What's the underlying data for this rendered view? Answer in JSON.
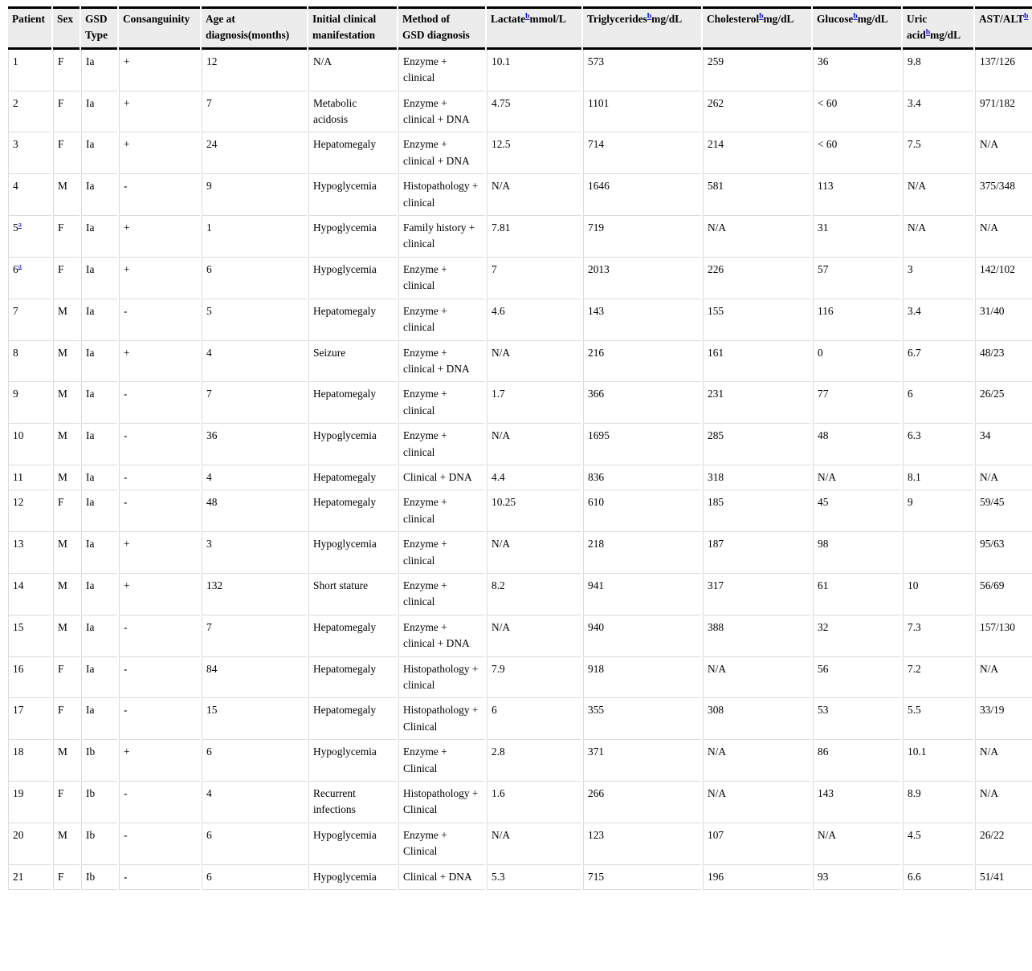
{
  "colors": {
    "header_background": "#ececec",
    "heavy_rule": "#000000",
    "grid_line": "#dcdcdc",
    "footnote_link": "#0000ee",
    "text": "#000000"
  },
  "table": {
    "columns": [
      {
        "lines": [
          [
            {
              "t": "Patient"
            }
          ]
        ]
      },
      {
        "lines": [
          [
            {
              "t": "Sex"
            }
          ]
        ]
      },
      {
        "lines": [
          [
            {
              "t": "GSD"
            }
          ],
          [
            {
              "t": "Type"
            }
          ]
        ]
      },
      {
        "lines": [
          [
            {
              "t": "Consanguinity"
            }
          ]
        ]
      },
      {
        "lines": [
          [
            {
              "t": "Age at"
            }
          ],
          [
            {
              "t": "diagnosis(months)"
            }
          ]
        ]
      },
      {
        "lines": [
          [
            {
              "t": "Initial clinical"
            }
          ],
          [
            {
              "t": "manifestation"
            }
          ]
        ]
      },
      {
        "lines": [
          [
            {
              "t": "Method of"
            }
          ],
          [
            {
              "t": "GSD diagnosis"
            }
          ]
        ]
      },
      {
        "lines": [
          [
            {
              "t": "Lactate"
            },
            {
              "sup": "b"
            },
            {
              "t": "mmol/L"
            }
          ]
        ]
      },
      {
        "lines": [
          [
            {
              "t": "Triglycerides"
            },
            {
              "sup": "b"
            },
            {
              "t": "mg/dL"
            }
          ]
        ]
      },
      {
        "lines": [
          [
            {
              "t": "Cholesterol"
            },
            {
              "sup": "b"
            },
            {
              "t": "mg/dL"
            }
          ]
        ]
      },
      {
        "lines": [
          [
            {
              "t": "Glucose"
            },
            {
              "sup": "b"
            },
            {
              "t": "mg/dL"
            }
          ]
        ]
      },
      {
        "lines": [
          [
            {
              "t": "Uric"
            }
          ],
          [
            {
              "t": "acid"
            },
            {
              "sup": "b"
            },
            {
              "t": "mg/dL"
            }
          ]
        ]
      },
      {
        "lines": [
          [
            {
              "t": "AST/ALT"
            },
            {
              "sup": "b"
            }
          ]
        ]
      }
    ],
    "rows": [
      {
        "p": "1",
        "c": [
          "F",
          "Ia",
          "+",
          "12",
          "N/A",
          "Enzyme + clinical",
          "10.1",
          "573",
          "259",
          "36",
          "9.8",
          "137/126"
        ]
      },
      {
        "p": "2",
        "c": [
          "F",
          "Ia",
          "+",
          "7",
          "Metabolic acidosis",
          "Enzyme + clinical + DNA",
          "4.75",
          "1101",
          "262",
          "< 60",
          "3.4",
          "971/182"
        ]
      },
      {
        "p": "3",
        "c": [
          "F",
          "Ia",
          "+",
          "24",
          "Hepatomegaly",
          "Enzyme + clinical + DNA",
          "12.5",
          "714",
          "214",
          "< 60",
          "7.5",
          "N/A"
        ]
      },
      {
        "p": "4",
        "c": [
          "M",
          "Ia",
          "-",
          "9",
          "Hypoglycemia",
          "Histopathology + clinical",
          "N/A",
          "1646",
          "581",
          "113",
          "N/A",
          "375/348"
        ]
      },
      {
        "p": "5",
        "sup": "a",
        "c": [
          "F",
          "Ia",
          "+",
          "1",
          "Hypoglycemia",
          "Family history + clinical",
          "7.81",
          "719",
          "N/A",
          "31",
          "N/A",
          "N/A"
        ]
      },
      {
        "p": "6",
        "sup": "a",
        "c": [
          "F",
          "Ia",
          "+",
          "6",
          "Hypoglycemia",
          "Enzyme + clinical",
          "7",
          "2013",
          "226",
          "57",
          "3",
          "142/102"
        ]
      },
      {
        "p": "7",
        "c": [
          "M",
          "Ia",
          "-",
          "5",
          "Hepatomegaly",
          "Enzyme + clinical",
          "4.6",
          "143",
          "155",
          "116",
          "3.4",
          "31/40"
        ]
      },
      {
        "p": "8",
        "c": [
          "M",
          "Ia",
          "+",
          "4",
          "Seizure",
          "Enzyme + clinical + DNA",
          "N/A",
          "216",
          "161",
          "0",
          "6.7",
          "48/23"
        ]
      },
      {
        "p": "9",
        "c": [
          "M",
          "Ia",
          "-",
          "7",
          "Hepatomegaly",
          "Enzyme + clinical",
          "1.7",
          "366",
          "231",
          "77",
          "6",
          "26/25"
        ]
      },
      {
        "p": "10",
        "c": [
          "M",
          "Ia",
          "-",
          "36",
          "Hypoglycemia",
          "Enzyme + clinical",
          "N/A",
          "1695",
          "285",
          "48",
          "6.3",
          "34"
        ]
      },
      {
        "p": "11",
        "c": [
          "M",
          "Ia",
          "-",
          "4",
          "Hepatomegaly",
          "Clinical + DNA",
          "4.4",
          "836",
          "318",
          "N/A",
          "8.1",
          "N/A"
        ]
      },
      {
        "p": "12",
        "c": [
          "F",
          "Ia",
          "-",
          "48",
          "Hepatomegaly",
          "Enzyme + clinical",
          "10.25",
          "610",
          "185",
          "45",
          "9",
          "59/45"
        ]
      },
      {
        "p": "13",
        "c": [
          "M",
          "Ia",
          "+",
          "3",
          "Hypoglycemia",
          "Enzyme + clinical",
          "N/A",
          "218",
          "187",
          "98",
          "",
          "95/63"
        ]
      },
      {
        "p": "14",
        "c": [
          "M",
          "Ia",
          "+",
          "132",
          "Short stature",
          "Enzyme + clinical",
          "8.2",
          "941",
          "317",
          "61",
          "10",
          "56/69"
        ]
      },
      {
        "p": "15",
        "c": [
          "M",
          "Ia",
          "-",
          "7",
          "Hepatomegaly",
          "Enzyme + clinical + DNA",
          "N/A",
          "940",
          "388",
          "32",
          "7.3",
          "157/130"
        ]
      },
      {
        "p": "16",
        "c": [
          "F",
          "Ia",
          "-",
          "84",
          "Hepatomegaly",
          "Histopathology + clinical",
          "7.9",
          "918",
          "N/A",
          "56",
          "7.2",
          "N/A"
        ]
      },
      {
        "p": "17",
        "c": [
          "F",
          "Ia",
          "-",
          "15",
          "Hepatomegaly",
          "Histopathology + Clinical",
          "6",
          "355",
          "308",
          "53",
          "5.5",
          "33/19"
        ]
      },
      {
        "p": "18",
        "c": [
          "M",
          "Ib",
          "+",
          "6",
          "Hypoglycemia",
          "Enzyme + Clinical",
          "2.8",
          "371",
          "N/A",
          "86",
          "10.1",
          "N/A"
        ]
      },
      {
        "p": "19",
        "c": [
          "F",
          "Ib",
          "-",
          "4",
          "Recurrent infections",
          "Histopathology + Clinical",
          "1.6",
          "266",
          "N/A",
          "143",
          "8.9",
          "N/A"
        ]
      },
      {
        "p": "20",
        "c": [
          "M",
          "Ib",
          "-",
          "6",
          "Hypoglycemia",
          "Enzyme + Clinical",
          "N/A",
          "123",
          "107",
          "N/A",
          "4.5",
          "26/22"
        ]
      },
      {
        "p": "21",
        "c": [
          "F",
          "Ib",
          "-",
          "6",
          "Hypoglycemia",
          "Clinical + DNA",
          "5.3",
          "715",
          "196",
          "93",
          "6.6",
          "51/41"
        ]
      }
    ]
  }
}
